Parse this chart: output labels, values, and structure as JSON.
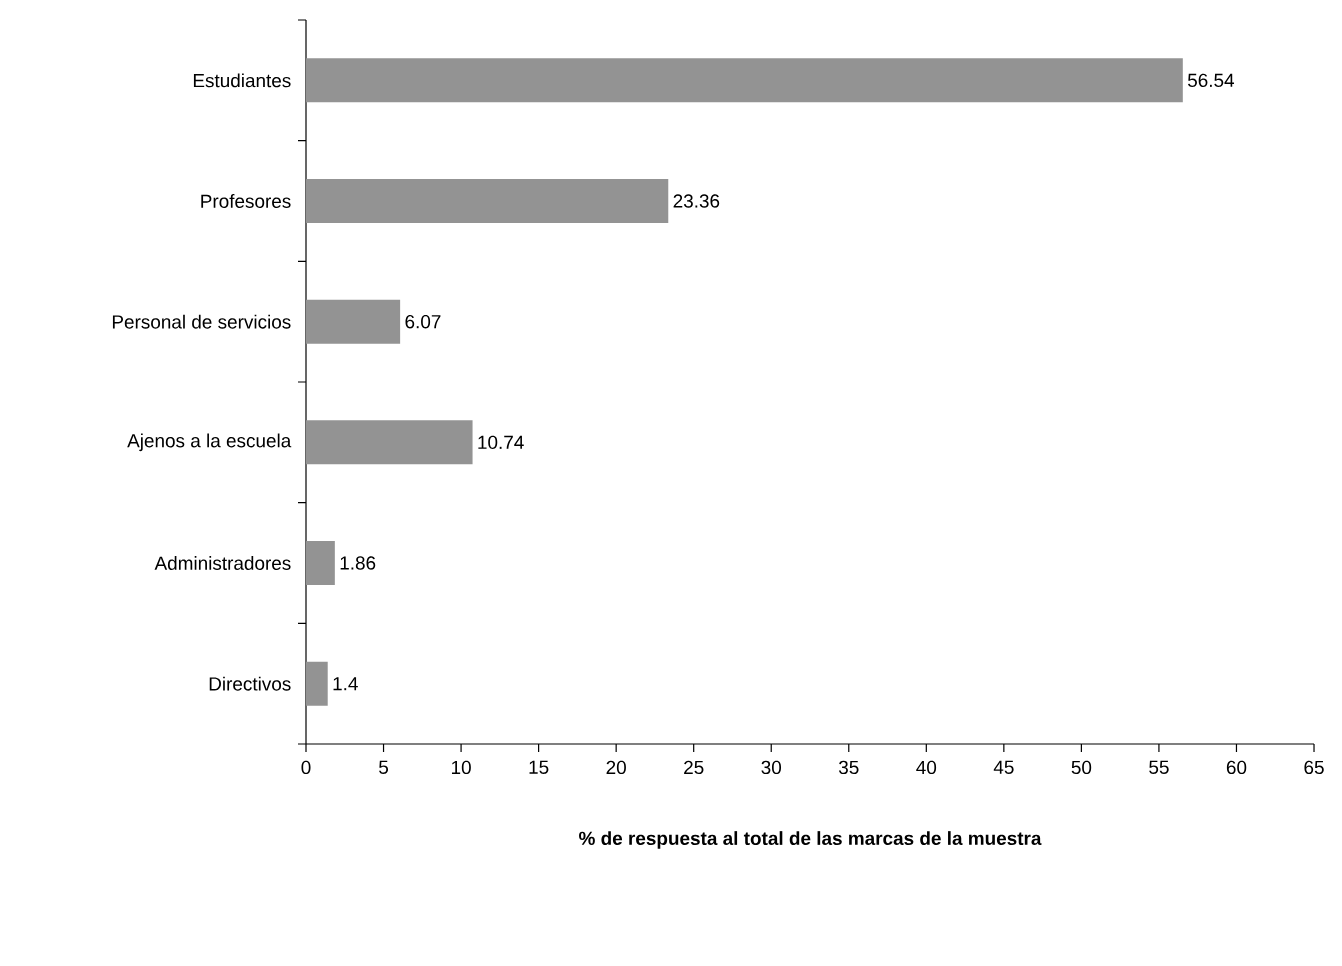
{
  "chart_data": {
    "type": "bar",
    "orientation": "horizontal",
    "xlabel": "% de respuesta al total de las marcas de la muestra",
    "categories": [
      "Estudiantes",
      "Profesores",
      "Personal de servicios",
      "Ajenos a la escuela",
      "Administradores",
      "Directivos"
    ],
    "values": [
      56.54,
      23.36,
      6.07,
      10.74,
      1.86,
      1.4
    ],
    "color": "#939393",
    "data_labels": true,
    "xlim": [
      0,
      65
    ],
    "xticks": [
      0,
      5,
      10,
      15,
      20,
      25,
      30,
      35,
      40,
      45,
      50,
      55,
      60,
      65
    ],
    "grid": false
  }
}
